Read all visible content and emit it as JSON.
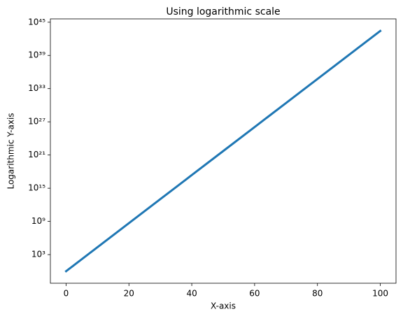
{
  "chart_data": {
    "type": "line",
    "title": "Using logarithmic scale",
    "x_label": "X-axis",
    "y_label": "Logarithmic Y-axis",
    "yscale": "log",
    "x": [
      0,
      10,
      20,
      30,
      40,
      50,
      60,
      70,
      80,
      90,
      100
    ],
    "series": [
      {
        "color": "#1f77b4",
        "values": [
          1,
          22026.47,
          485165195.4,
          10686000000000.0,
          2.3539e+17,
          5.1847e+21,
          1.142e+26,
          2.5154e+30,
          5.5406e+34,
          1.2204e+39,
          2.6881e+43
        ]
      }
    ],
    "xlim": [
      -5,
      105
    ],
    "xticks": [
      0,
      20,
      40,
      60,
      80,
      100
    ],
    "ylim": [
      0.00674,
      3.99e+45
    ],
    "yticks": [
      {
        "value": 1000.0,
        "label": "10³"
      },
      {
        "value": 1000000000.0,
        "label": "10⁹"
      },
      {
        "value": 1000000000000000.0,
        "label": "10¹⁵"
      },
      {
        "value": 1e+21,
        "label": "10²¹"
      },
      {
        "value": 1e+27,
        "label": "10²⁷"
      },
      {
        "value": 1e+33,
        "label": "10³³"
      },
      {
        "value": 1e+39,
        "label": "10³⁹"
      },
      {
        "value": 1e+45,
        "label": "10⁴⁵"
      }
    ]
  }
}
